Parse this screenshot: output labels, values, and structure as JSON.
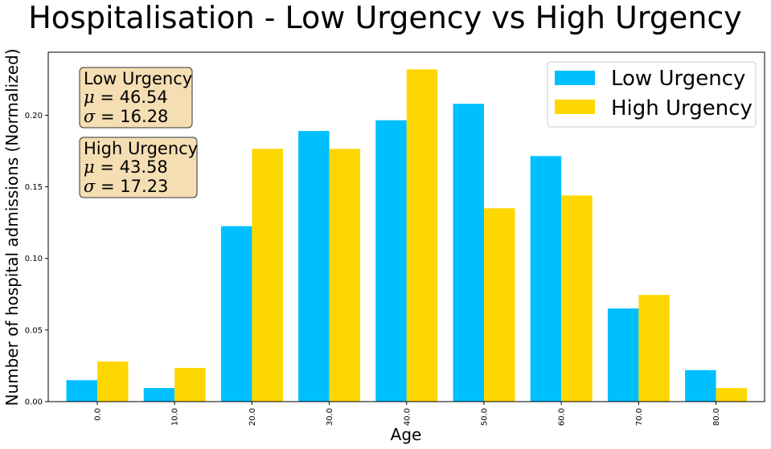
{
  "chart_data": {
    "type": "bar",
    "title": "Hospitalisation - Low Urgency vs High Urgency",
    "xlabel": "Age",
    "ylabel": "Number of hospital admissions (Normalized)",
    "categories": [
      "0.0",
      "10.0",
      "20.0",
      "30.0",
      "40.0",
      "50.0",
      "60.0",
      "70.0",
      "80.0"
    ],
    "series": [
      {
        "name": "Low Urgency",
        "color": "#00bfff",
        "values": [
          0.015,
          0.0095,
          0.1225,
          0.189,
          0.1965,
          0.208,
          0.1715,
          0.065,
          0.022
        ]
      },
      {
        "name": "High Urgency",
        "color": "#ffd700",
        "values": [
          0.028,
          0.0235,
          0.1765,
          0.1765,
          0.232,
          0.135,
          0.144,
          0.0745,
          0.0095
        ]
      }
    ],
    "ylim": [
      0,
      0.244
    ],
    "yticks": [
      "0.00",
      "0.05",
      "0.10",
      "0.15",
      "0.20"
    ],
    "legend_position": "top-right",
    "grid": false,
    "stat_boxes": [
      {
        "label": "Low Urgency",
        "mu_symbol": "μ",
        "mu": "46.54",
        "sigma_symbol": "σ",
        "sigma": "16.28"
      },
      {
        "label": "High Urgency",
        "mu_symbol": "μ",
        "mu": "43.58",
        "sigma_symbol": "σ",
        "sigma": "17.23"
      }
    ],
    "stat_box_colors": {
      "fill": "#f5deb3",
      "stroke": "#333333"
    }
  }
}
